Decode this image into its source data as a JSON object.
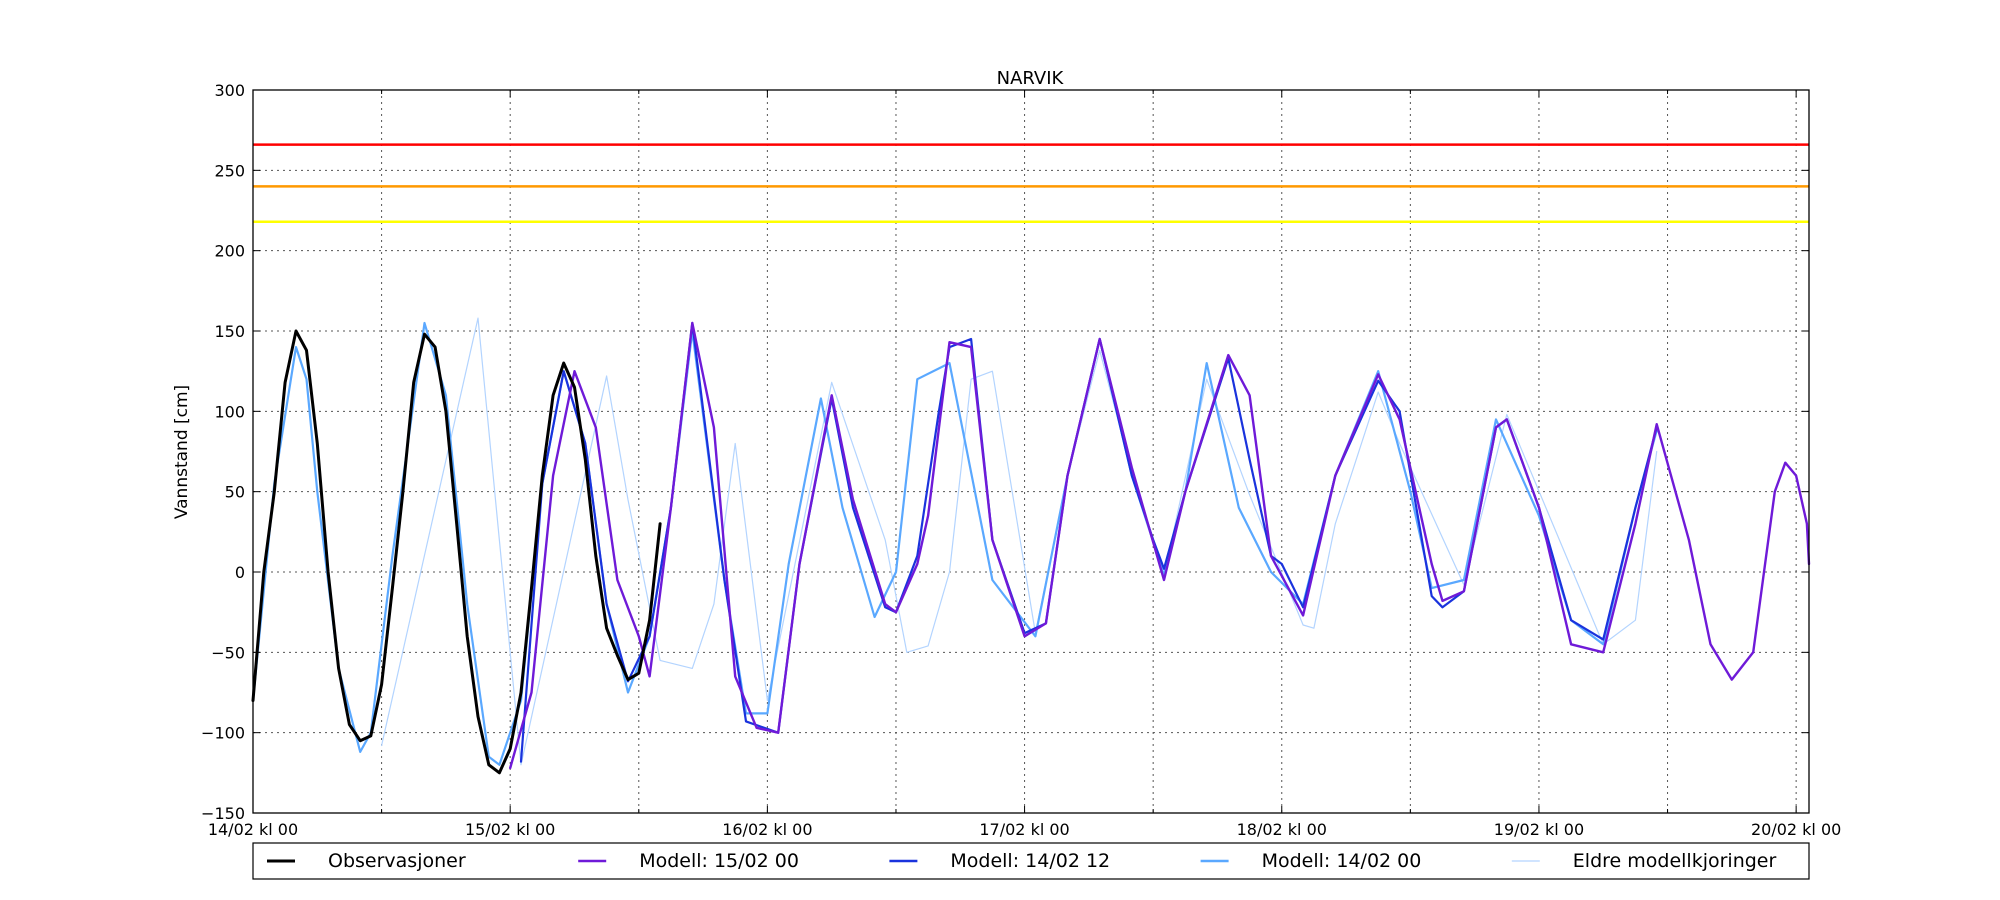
{
  "chart_data": {
    "type": "line",
    "title": "NARVIK",
    "ylabel": "Vannstand [cm]",
    "xlabel": "",
    "xlim": [
      0,
      6.05
    ],
    "ylim": [
      -150,
      300
    ],
    "yticks": [
      -150,
      -100,
      -50,
      0,
      50,
      100,
      150,
      200,
      250,
      300
    ],
    "xticks": [
      {
        "x": 0,
        "label": "14/02 kl 00"
      },
      {
        "x": 1,
        "label": "15/02 kl 00"
      },
      {
        "x": 2,
        "label": "16/02 kl 00"
      },
      {
        "x": 3,
        "label": "17/02 kl 00"
      },
      {
        "x": 4,
        "label": "18/02 kl 00"
      },
      {
        "x": 5,
        "label": "19/02 kl 00"
      },
      {
        "x": 6,
        "label": "20/02 kl 00"
      }
    ],
    "x_minor_grid": [
      0.5,
      1.5,
      2.5,
      3.5,
      4.5,
      5.5
    ],
    "x_unit": "days since 14/02 kl 00",
    "grid": "dotted",
    "legend_position": "bottom",
    "thresholds": [
      {
        "value": 266,
        "color": "#ff0000"
      },
      {
        "value": 240,
        "color": "#ff9900"
      },
      {
        "value": 218,
        "color": "#ffff00"
      }
    ],
    "series": [
      {
        "name": "Eldre modellkjoringer",
        "color": "#b3d4ff",
        "width": 1.2,
        "points": [
          [
            0.5,
            -108
          ],
          [
            0.875,
            158
          ],
          [
            1.042,
            -120
          ],
          [
            1.375,
            122
          ],
          [
            1.458,
            45
          ],
          [
            1.583,
            -55
          ],
          [
            1.708,
            -60
          ],
          [
            1.792,
            -20
          ],
          [
            1.875,
            80
          ],
          [
            2.0,
            -80
          ],
          [
            2.25,
            118
          ],
          [
            2.458,
            20
          ],
          [
            2.542,
            -50
          ],
          [
            2.625,
            -46
          ],
          [
            2.708,
            0
          ],
          [
            2.792,
            120
          ],
          [
            2.875,
            125
          ],
          [
            3.042,
            -38
          ],
          [
            3.167,
            60
          ],
          [
            3.292,
            138
          ],
          [
            3.417,
            62
          ],
          [
            3.542,
            -2
          ],
          [
            3.708,
            120
          ],
          [
            3.875,
            48
          ],
          [
            4.083,
            -33
          ],
          [
            4.125,
            -35
          ],
          [
            4.208,
            30
          ],
          [
            4.375,
            112
          ],
          [
            4.458,
            80
          ],
          [
            4.708,
            -8
          ],
          [
            4.875,
            98
          ],
          [
            5.25,
            -45
          ],
          [
            5.375,
            -30
          ],
          [
            5.458,
            75
          ]
        ]
      },
      {
        "name": "Modell: 14/02 00",
        "color": "#5aa8ff",
        "width": 2.2,
        "points": [
          [
            0,
            -80
          ],
          [
            0.083,
            55
          ],
          [
            0.167,
            140
          ],
          [
            0.208,
            120
          ],
          [
            0.25,
            50
          ],
          [
            0.333,
            -60
          ],
          [
            0.417,
            -112
          ],
          [
            0.458,
            -100
          ],
          [
            0.542,
            10
          ],
          [
            0.667,
            155
          ],
          [
            0.75,
            110
          ],
          [
            0.833,
            -20
          ],
          [
            0.917,
            -115
          ],
          [
            0.958,
            -120
          ],
          [
            1.042,
            -80
          ],
          [
            1.125,
            55
          ],
          [
            1.208,
            125
          ],
          [
            1.292,
            80
          ],
          [
            1.375,
            -20
          ],
          [
            1.458,
            -75
          ],
          [
            1.542,
            -40
          ],
          [
            1.625,
            40
          ],
          [
            1.708,
            150
          ],
          [
            1.833,
            -5
          ],
          [
            1.917,
            -88
          ],
          [
            2.0,
            -88
          ],
          [
            2.083,
            5
          ],
          [
            2.208,
            108
          ],
          [
            2.292,
            40
          ],
          [
            2.417,
            -28
          ],
          [
            2.5,
            0
          ],
          [
            2.583,
            120
          ],
          [
            2.708,
            130
          ],
          [
            2.875,
            -5
          ],
          [
            3.042,
            -40
          ],
          [
            3.167,
            60
          ],
          [
            3.292,
            145
          ],
          [
            3.417,
            60
          ],
          [
            3.542,
            -2
          ],
          [
            3.625,
            50
          ],
          [
            3.708,
            130
          ],
          [
            3.833,
            40
          ],
          [
            3.958,
            0
          ],
          [
            4.083,
            -20
          ],
          [
            4.208,
            60
          ],
          [
            4.375,
            125
          ],
          [
            4.5,
            50
          ],
          [
            4.583,
            -10
          ],
          [
            4.708,
            -5
          ],
          [
            4.833,
            95
          ],
          [
            5.0,
            35
          ],
          [
            5.125,
            -30
          ],
          [
            5.25,
            -45
          ],
          [
            5.375,
            40
          ],
          [
            5.458,
            88
          ]
        ]
      },
      {
        "name": "Modell: 14/02 12",
        "color": "#1a33dd",
        "width": 2.2,
        "points": [
          [
            1.042,
            -118
          ],
          [
            1.125,
            55
          ],
          [
            1.208,
            125
          ],
          [
            1.292,
            80
          ],
          [
            1.375,
            -20
          ],
          [
            1.458,
            -68
          ],
          [
            1.542,
            -40
          ],
          [
            1.625,
            40
          ],
          [
            1.708,
            155
          ],
          [
            1.833,
            -5
          ],
          [
            1.917,
            -93
          ],
          [
            2.042,
            -100
          ],
          [
            2.125,
            5
          ],
          [
            2.25,
            108
          ],
          [
            2.333,
            40
          ],
          [
            2.458,
            -22
          ],
          [
            2.5,
            -25
          ],
          [
            2.583,
            10
          ],
          [
            2.667,
            100
          ],
          [
            2.708,
            140
          ],
          [
            2.792,
            145
          ],
          [
            2.875,
            20
          ],
          [
            3.0,
            -38
          ],
          [
            3.083,
            -32
          ],
          [
            3.167,
            60
          ],
          [
            3.292,
            145
          ],
          [
            3.417,
            60
          ],
          [
            3.5,
            20
          ],
          [
            3.542,
            2
          ],
          [
            3.625,
            50
          ],
          [
            3.792,
            133
          ],
          [
            3.875,
            70
          ],
          [
            3.958,
            10
          ],
          [
            4.0,
            5
          ],
          [
            4.083,
            -22
          ],
          [
            4.208,
            60
          ],
          [
            4.375,
            119
          ],
          [
            4.458,
            100
          ],
          [
            4.583,
            -15
          ],
          [
            4.625,
            -22
          ],
          [
            4.708,
            -12
          ],
          [
            4.833,
            90
          ],
          [
            4.875,
            95
          ],
          [
            5.0,
            40
          ],
          [
            5.125,
            -30
          ],
          [
            5.25,
            -42
          ],
          [
            5.375,
            40
          ],
          [
            5.458,
            90
          ]
        ]
      },
      {
        "name": "Modell: 15/02 00",
        "color": "#6f1ad8",
        "width": 2.4,
        "points": [
          [
            1.0,
            -122
          ],
          [
            1.083,
            -75
          ],
          [
            1.167,
            60
          ],
          [
            1.25,
            125
          ],
          [
            1.333,
            90
          ],
          [
            1.417,
            -5
          ],
          [
            1.5,
            -40
          ],
          [
            1.542,
            -65
          ],
          [
            1.625,
            40
          ],
          [
            1.708,
            155
          ],
          [
            1.792,
            90
          ],
          [
            1.875,
            -65
          ],
          [
            1.958,
            -97
          ],
          [
            2.042,
            -100
          ],
          [
            2.125,
            5
          ],
          [
            2.25,
            110
          ],
          [
            2.333,
            45
          ],
          [
            2.458,
            -20
          ],
          [
            2.5,
            -25
          ],
          [
            2.583,
            5
          ],
          [
            2.625,
            35
          ],
          [
            2.708,
            143
          ],
          [
            2.792,
            140
          ],
          [
            2.875,
            20
          ],
          [
            3.0,
            -40
          ],
          [
            3.083,
            -32
          ],
          [
            3.167,
            60
          ],
          [
            3.292,
            145
          ],
          [
            3.417,
            65
          ],
          [
            3.542,
            -5
          ],
          [
            3.625,
            50
          ],
          [
            3.792,
            135
          ],
          [
            3.875,
            110
          ],
          [
            3.958,
            10
          ],
          [
            4.083,
            -27
          ],
          [
            4.208,
            60
          ],
          [
            4.375,
            123
          ],
          [
            4.458,
            95
          ],
          [
            4.583,
            5
          ],
          [
            4.625,
            -18
          ],
          [
            4.708,
            -12
          ],
          [
            4.833,
            90
          ],
          [
            4.875,
            95
          ],
          [
            5.0,
            40
          ],
          [
            5.125,
            -45
          ],
          [
            5.25,
            -50
          ],
          [
            5.375,
            30
          ],
          [
            5.458,
            92
          ],
          [
            5.583,
            20
          ],
          [
            5.667,
            -45
          ],
          [
            5.75,
            -67
          ],
          [
            5.833,
            -50
          ],
          [
            5.917,
            50
          ],
          [
            5.958,
            68
          ],
          [
            6.0,
            60
          ],
          [
            6.042,
            30
          ],
          [
            6.05,
            5
          ]
        ]
      },
      {
        "name": "Observasjoner",
        "color": "#000000",
        "width": 3,
        "points": [
          [
            0,
            -80
          ],
          [
            0.042,
            0
          ],
          [
            0.083,
            50
          ],
          [
            0.125,
            118
          ],
          [
            0.167,
            150
          ],
          [
            0.208,
            138
          ],
          [
            0.25,
            80
          ],
          [
            0.292,
            0
          ],
          [
            0.333,
            -60
          ],
          [
            0.375,
            -95
          ],
          [
            0.417,
            -105
          ],
          [
            0.458,
            -102
          ],
          [
            0.5,
            -70
          ],
          [
            0.542,
            -10
          ],
          [
            0.583,
            50
          ],
          [
            0.625,
            118
          ],
          [
            0.667,
            148
          ],
          [
            0.708,
            140
          ],
          [
            0.75,
            100
          ],
          [
            0.792,
            30
          ],
          [
            0.833,
            -40
          ],
          [
            0.875,
            -90
          ],
          [
            0.917,
            -120
          ],
          [
            0.958,
            -125
          ],
          [
            1.0,
            -110
          ],
          [
            1.042,
            -75
          ],
          [
            1.083,
            -10
          ],
          [
            1.125,
            60
          ],
          [
            1.167,
            110
          ],
          [
            1.208,
            130
          ],
          [
            1.25,
            115
          ],
          [
            1.292,
            70
          ],
          [
            1.333,
            10
          ],
          [
            1.375,
            -35
          ],
          [
            1.417,
            -52
          ],
          [
            1.458,
            -67
          ],
          [
            1.5,
            -63
          ],
          [
            1.542,
            -30
          ],
          [
            1.583,
            30
          ]
        ]
      }
    ]
  },
  "legend": {
    "items": [
      {
        "label": "Observasjoner",
        "color": "#000000",
        "width": 3
      },
      {
        "label": "Modell: 15/02 00",
        "color": "#6f1ad8",
        "width": 2.4
      },
      {
        "label": "Modell: 14/02 12",
        "color": "#1a33dd",
        "width": 2.4
      },
      {
        "label": "Modell: 14/02 00",
        "color": "#5aa8ff",
        "width": 2.4
      },
      {
        "label": "Eldre modellkjoringer",
        "color": "#b3d4ff",
        "width": 1.2
      }
    ]
  }
}
